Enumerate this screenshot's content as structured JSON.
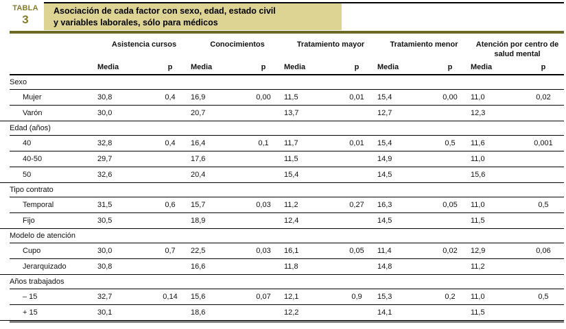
{
  "header": {
    "tag": "TABLA",
    "number": "3",
    "title_line1": "Asociación de cada factor con sexo, edad, estado civil",
    "title_line2": "y variables laborales, sólo para médicos"
  },
  "table": {
    "column_groups": [
      "Asistencia cursos",
      "Conocimientos",
      "Tratamiento mayor",
      "Tratamiento menor",
      "Atención por centro de salud mental"
    ],
    "subheaders": {
      "media": "Media",
      "p": "p"
    },
    "sections": [
      {
        "label": "Sexo",
        "rows": [
          {
            "label": "Mujer",
            "values": [
              "30,8",
              "0,4",
              "16,9",
              "0,00",
              "11,5",
              "0,01",
              "15,4",
              "0,00",
              "11,0",
              "0,02"
            ]
          },
          {
            "label": "Varón",
            "values": [
              "30,0",
              "",
              "20,7",
              "",
              "13,7",
              "",
              "12,7",
              "",
              "12,3",
              ""
            ]
          }
        ]
      },
      {
        "label": "Edad (años)",
        "rows": [
          {
            "label": "40",
            "values": [
              "32,8",
              "0,4",
              "16,4",
              "0,1",
              "11,7",
              "0,01",
              "15,4",
              "0,5",
              "11,6",
              "0,001"
            ]
          },
          {
            "label": "40-50",
            "values": [
              "29,7",
              "",
              "17,6",
              "",
              "11,5",
              "",
              "14,9",
              "",
              "11,0",
              ""
            ]
          },
          {
            "label": "50",
            "values": [
              "32,6",
              "",
              "20,4",
              "",
              "15,4",
              "",
              "14,5",
              "",
              "15,6",
              ""
            ]
          }
        ]
      },
      {
        "label": "Tipo contrato",
        "rows": [
          {
            "label": "Temporal",
            "values": [
              "31,5",
              "0,6",
              "15,7",
              "0,03",
              "11,2",
              "0,27",
              "16,3",
              "0,05",
              "11,0",
              "0,5"
            ]
          },
          {
            "label": "Fijo",
            "values": [
              "30,5",
              "",
              "18,9",
              "",
              "12,4",
              "",
              "14,5",
              "",
              "11,5",
              ""
            ]
          }
        ]
      },
      {
        "label": "Modelo de atención",
        "rows": [
          {
            "label": "Cupo",
            "values": [
              "30,0",
              "0,7",
              "22,5",
              "0,03",
              "16,1",
              "0,05",
              "11,4",
              "0,02",
              "12,9",
              "0,06"
            ]
          },
          {
            "label": "Jerarquizado",
            "values": [
              "30,8",
              "",
              "16,6",
              "",
              "11,8",
              "",
              "14,8",
              "",
              "11,2",
              ""
            ]
          }
        ]
      },
      {
        "label": "Años trabajados",
        "rows": [
          {
            "label": "– 15",
            "values": [
              "32,7",
              "0,14",
              "15,6",
              "0,07",
              "12,1",
              "0,9",
              "15,3",
              "0,2",
              "11,0",
              "0,5"
            ]
          },
          {
            "label": "+ 15",
            "values": [
              "30,1",
              "",
              "18,6",
              "",
              "12,2",
              "",
              "14,1",
              "",
              "11,5",
              ""
            ]
          }
        ]
      }
    ]
  },
  "colors": {
    "title_box_bg": "#ddd493",
    "tabla_text": "#857b2b",
    "accent_bar": "#6e6825",
    "bottom_bar": "#7d7d7d",
    "rule": "#000000"
  }
}
